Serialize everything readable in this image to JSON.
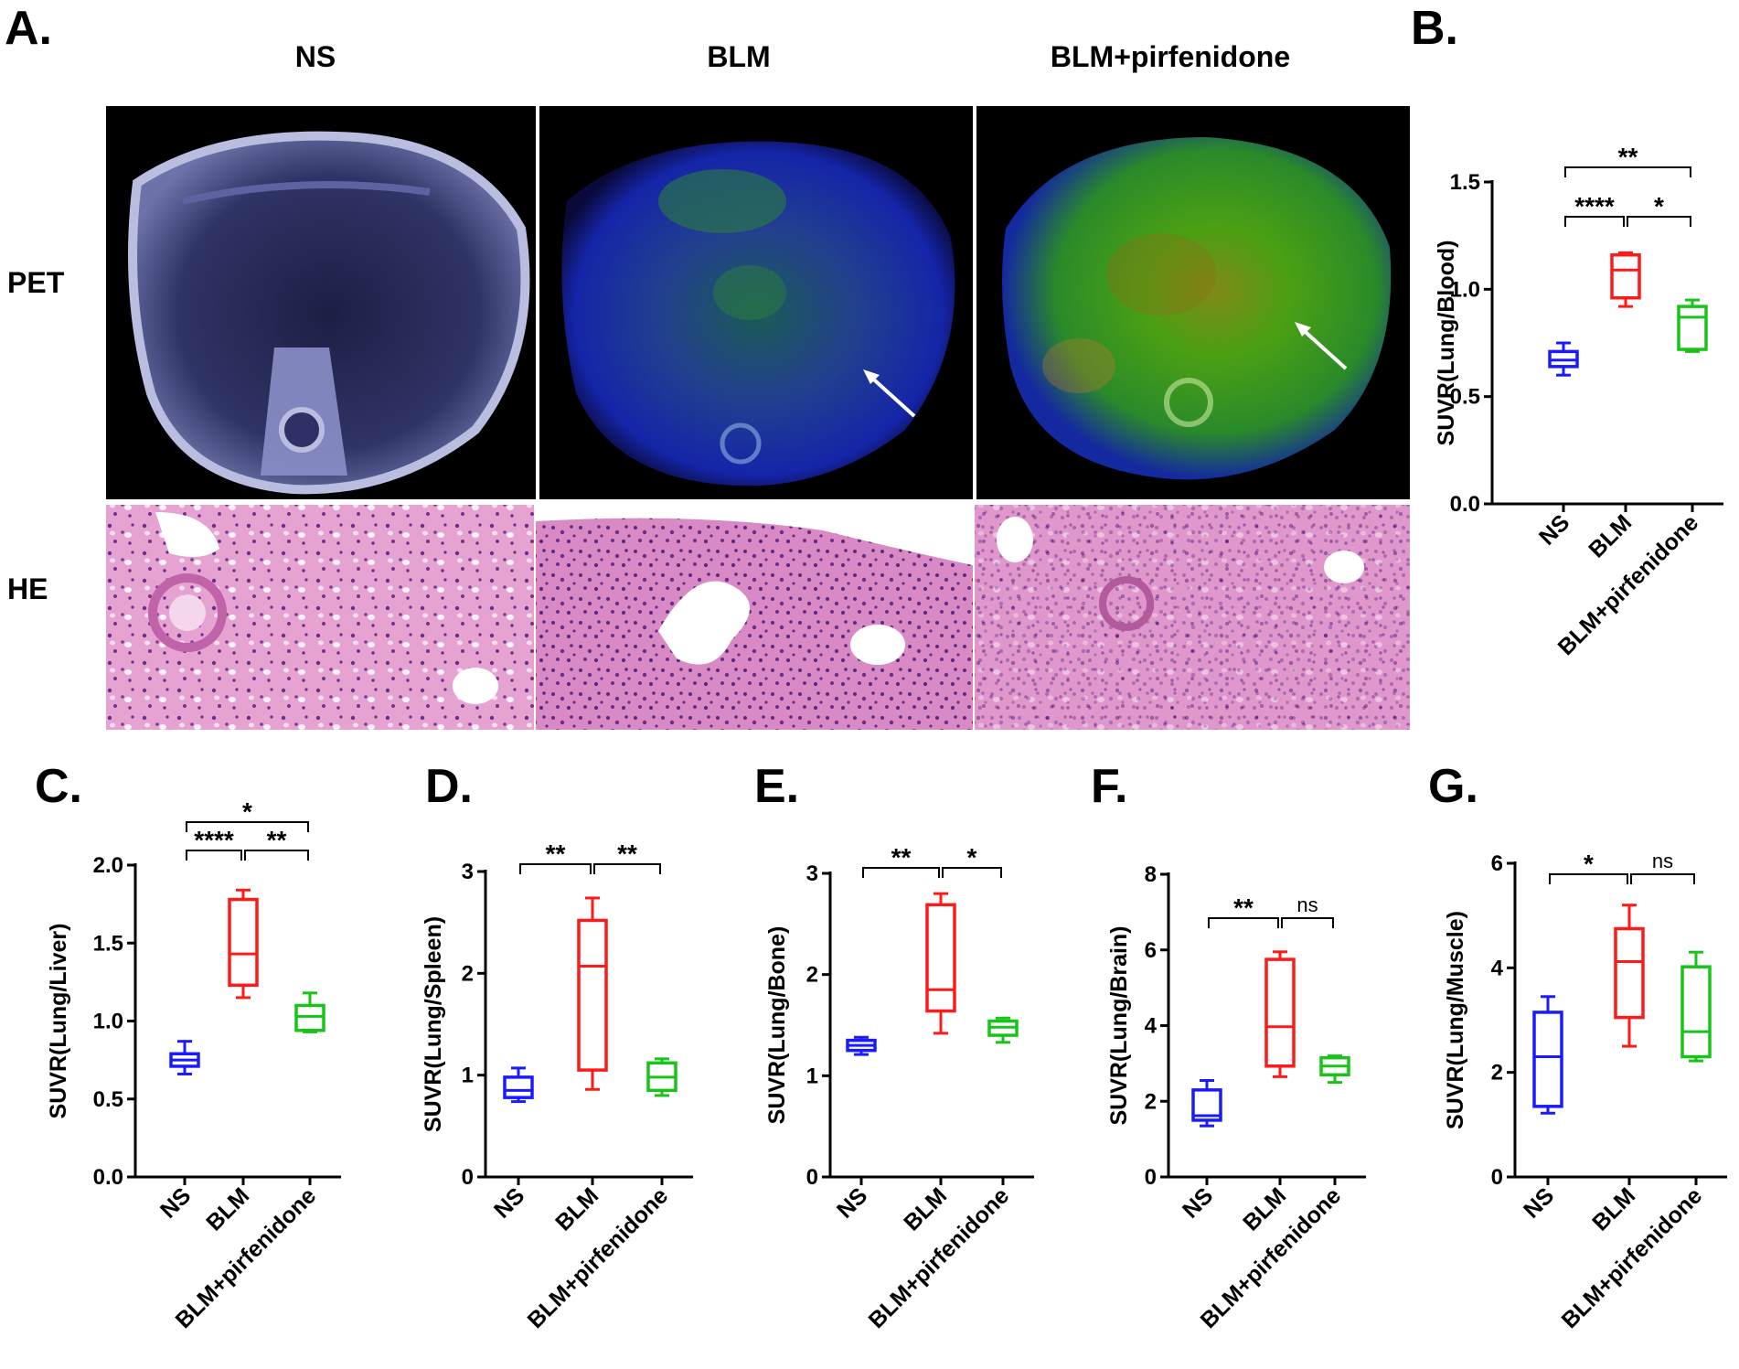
{
  "panel_a": {
    "label": "A.",
    "columns": [
      "NS",
      "BLM",
      "BLM+pirfenidone"
    ],
    "rows": [
      "PET",
      "HE"
    ]
  },
  "colors": {
    "NS": "#1a1aff",
    "BLM": "#ff1a1a",
    "BLM+pirfenidone": "#19c419"
  },
  "chart_data": [
    {
      "panel": "B.",
      "type": "box",
      "ylabel": "SUVR(Lung/Blood)",
      "categories": [
        "NS",
        "BLM",
        "BLM+pirfenidone"
      ],
      "ylim": [
        0,
        1.5
      ],
      "yticks": [
        0.0,
        0.5,
        1.0,
        1.5
      ],
      "ytick_labels": [
        "0.0",
        "0.5",
        "1.0",
        "1.5"
      ],
      "boxes": [
        {
          "min": 0.6,
          "q1": 0.64,
          "median": 0.67,
          "q3": 0.71,
          "max": 0.75
        },
        {
          "min": 0.92,
          "q1": 0.96,
          "median": 1.09,
          "q3": 1.16,
          "max": 1.17
        },
        {
          "min": 0.71,
          "q1": 0.72,
          "median": 0.87,
          "q3": 0.92,
          "max": 0.95
        }
      ],
      "significance": [
        {
          "from": 0,
          "to": 1,
          "level": 0,
          "text": "****"
        },
        {
          "from": 1,
          "to": 2,
          "level": 0,
          "text": "*"
        },
        {
          "from": 0,
          "to": 2,
          "level": 1,
          "text": "**"
        }
      ]
    },
    {
      "panel": "C.",
      "type": "box",
      "ylabel": "SUVR(Lung/Liver)",
      "categories": [
        "NS",
        "BLM",
        "BLM+pirfenidone"
      ],
      "ylim": [
        0,
        2.0
      ],
      "yticks": [
        0.0,
        0.5,
        1.0,
        1.5,
        2.0
      ],
      "ytick_labels": [
        "0.0",
        "0.5",
        "1.0",
        "1.5",
        "2.0"
      ],
      "boxes": [
        {
          "min": 0.66,
          "q1": 0.71,
          "median": 0.75,
          "q3": 0.79,
          "max": 0.87
        },
        {
          "min": 1.15,
          "q1": 1.23,
          "median": 1.43,
          "q3": 1.78,
          "max": 1.84
        },
        {
          "min": 0.93,
          "q1": 0.94,
          "median": 1.03,
          "q3": 1.1,
          "max": 1.18
        }
      ],
      "significance": [
        {
          "from": 0,
          "to": 1,
          "level": 0,
          "text": "****"
        },
        {
          "from": 1,
          "to": 2,
          "level": 0,
          "text": "**"
        },
        {
          "from": 0,
          "to": 2,
          "level": 1,
          "text": "*"
        }
      ]
    },
    {
      "panel": "D.",
      "type": "box",
      "ylabel": "SUVR(Lung/Spleen)",
      "categories": [
        "NS",
        "BLM",
        "BLM+pirfenidone"
      ],
      "ylim": [
        0,
        3
      ],
      "yticks": [
        0,
        1,
        2,
        3
      ],
      "ytick_labels": [
        "0",
        "1",
        "2",
        "3"
      ],
      "boxes": [
        {
          "min": 0.74,
          "q1": 0.78,
          "median": 0.85,
          "q3": 0.98,
          "max": 1.07
        },
        {
          "min": 0.86,
          "q1": 1.05,
          "median": 2.07,
          "q3": 2.52,
          "max": 2.74
        },
        {
          "min": 0.8,
          "q1": 0.85,
          "median": 0.98,
          "q3": 1.12,
          "max": 1.16
        }
      ],
      "significance": [
        {
          "from": 0,
          "to": 1,
          "level": 0,
          "text": "**"
        },
        {
          "from": 1,
          "to": 2,
          "level": 0,
          "text": "**"
        }
      ]
    },
    {
      "panel": "E.",
      "type": "box",
      "ylabel": "SUVR(Lung/Bone)",
      "categories": [
        "NS",
        "BLM",
        "BLM+pirfenidone"
      ],
      "ylim": [
        0,
        3
      ],
      "yticks": [
        0,
        1,
        2,
        3
      ],
      "ytick_labels": [
        "0",
        "1",
        "2",
        "3"
      ],
      "boxes": [
        {
          "min": 1.21,
          "q1": 1.25,
          "median": 1.3,
          "q3": 1.35,
          "max": 1.38
        },
        {
          "min": 1.42,
          "q1": 1.64,
          "median": 1.85,
          "q3": 2.69,
          "max": 2.8
        },
        {
          "min": 1.33,
          "q1": 1.4,
          "median": 1.48,
          "q3": 1.54,
          "max": 1.57
        }
      ],
      "significance": [
        {
          "from": 0,
          "to": 1,
          "level": 0,
          "text": "**"
        },
        {
          "from": 1,
          "to": 2,
          "level": 0,
          "text": "*"
        }
      ]
    },
    {
      "panel": "F.",
      "type": "box",
      "ylabel": "SUVR(Lung/Brain)",
      "categories": [
        "NS",
        "BLM",
        "BLM+pirfenidone"
      ],
      "ylim": [
        0,
        8
      ],
      "yticks": [
        0,
        2,
        4,
        6,
        8
      ],
      "ytick_labels": [
        "0",
        "2",
        "4",
        "6",
        "8"
      ],
      "boxes": [
        {
          "min": 1.35,
          "q1": 1.5,
          "median": 1.62,
          "q3": 2.3,
          "max": 2.55
        },
        {
          "min": 2.65,
          "q1": 2.93,
          "median": 3.97,
          "q3": 5.75,
          "max": 5.95
        },
        {
          "min": 2.5,
          "q1": 2.7,
          "median": 2.93,
          "q3": 3.15,
          "max": 3.2
        }
      ],
      "significance": [
        {
          "from": 0,
          "to": 1,
          "level": 0,
          "text": "**"
        },
        {
          "from": 1,
          "to": 2,
          "level": 0,
          "text": "ns"
        }
      ]
    },
    {
      "panel": "G.",
      "type": "box",
      "ylabel": "SUVR(Lung/Muscle)",
      "categories": [
        "NS",
        "BLM",
        "BLM+pirfenidone"
      ],
      "ylim": [
        0,
        6
      ],
      "yticks": [
        0,
        2,
        4,
        6
      ],
      "ytick_labels": [
        "0",
        "2",
        "4",
        "6"
      ],
      "boxes": [
        {
          "min": 1.22,
          "q1": 1.35,
          "median": 2.3,
          "q3": 3.15,
          "max": 3.45
        },
        {
          "min": 2.5,
          "q1": 3.05,
          "median": 4.12,
          "q3": 4.75,
          "max": 5.2
        },
        {
          "min": 2.22,
          "q1": 2.3,
          "median": 2.78,
          "q3": 4.02,
          "max": 4.3
        }
      ],
      "significance": [
        {
          "from": 0,
          "to": 1,
          "level": 0,
          "text": "*"
        },
        {
          "from": 1,
          "to": 2,
          "level": 0,
          "text": "ns"
        }
      ]
    }
  ]
}
